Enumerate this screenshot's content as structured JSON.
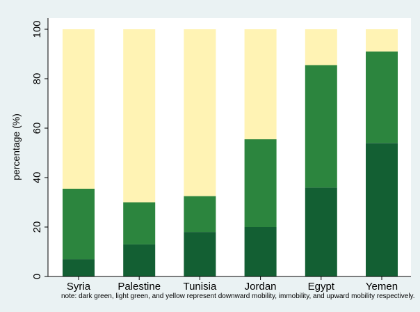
{
  "chart_data": {
    "type": "bar",
    "stacked": true,
    "categories": [
      "Syria",
      "Palestine",
      "Tunisia",
      "Jordan",
      "Egypt",
      "Yemen"
    ],
    "series": [
      {
        "values": [
          7,
          13,
          18,
          20,
          36,
          54
        ],
        "color": "#135f33"
      },
      {
        "values": [
          28.5,
          17,
          14.5,
          35.5,
          49.5,
          37
        ],
        "color": "#2c853e"
      },
      {
        "values": [
          64.5,
          70,
          67.5,
          44.5,
          14.5,
          9
        ],
        "color": "#fff3b4"
      }
    ],
    "ylabel": "percentage (%)",
    "xlabel": "",
    "ylim": [
      0,
      100
    ],
    "yticks": [
      0,
      20,
      40,
      60,
      80,
      100
    ],
    "grid": false,
    "legend": "none",
    "note": "note: dark green, light green, and yellow represent downward mobility, immobility, and upward mobility respectively.",
    "plot_background": "#ffffff",
    "outer_background": "#eaf2f3"
  }
}
